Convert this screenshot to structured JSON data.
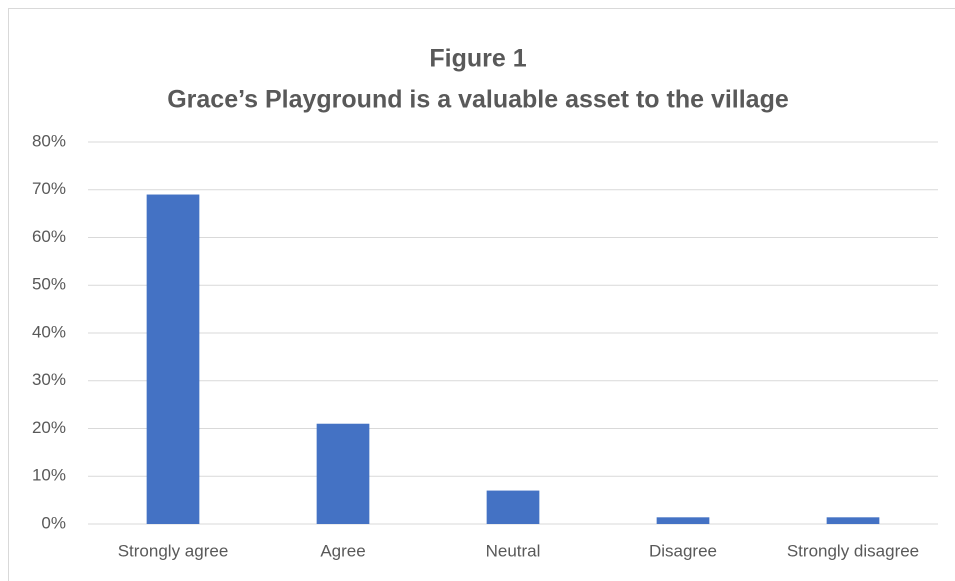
{
  "chart_data": {
    "type": "bar",
    "title": "Figure 1",
    "subtitle": "Grace’s Playground is a valuable asset to the village",
    "categories": [
      "Strongly agree",
      "Agree",
      "Neutral",
      "Disagree",
      "Strongly disagree"
    ],
    "values": [
      69,
      21,
      7,
      1.4,
      1.4
    ],
    "color": "#4472c4",
    "ylim": [
      0,
      80
    ],
    "yticks": [
      {
        "value": 0,
        "label": "0%"
      },
      {
        "value": 10,
        "label": "10%"
      },
      {
        "value": 20,
        "label": "20%"
      },
      {
        "value": 30,
        "label": "30%"
      },
      {
        "value": 40,
        "label": "40%"
      },
      {
        "value": 50,
        "label": "50%"
      },
      {
        "value": 60,
        "label": "60%"
      },
      {
        "value": 70,
        "label": "70%"
      },
      {
        "value": 80,
        "label": "80%"
      }
    ],
    "grid": true
  }
}
